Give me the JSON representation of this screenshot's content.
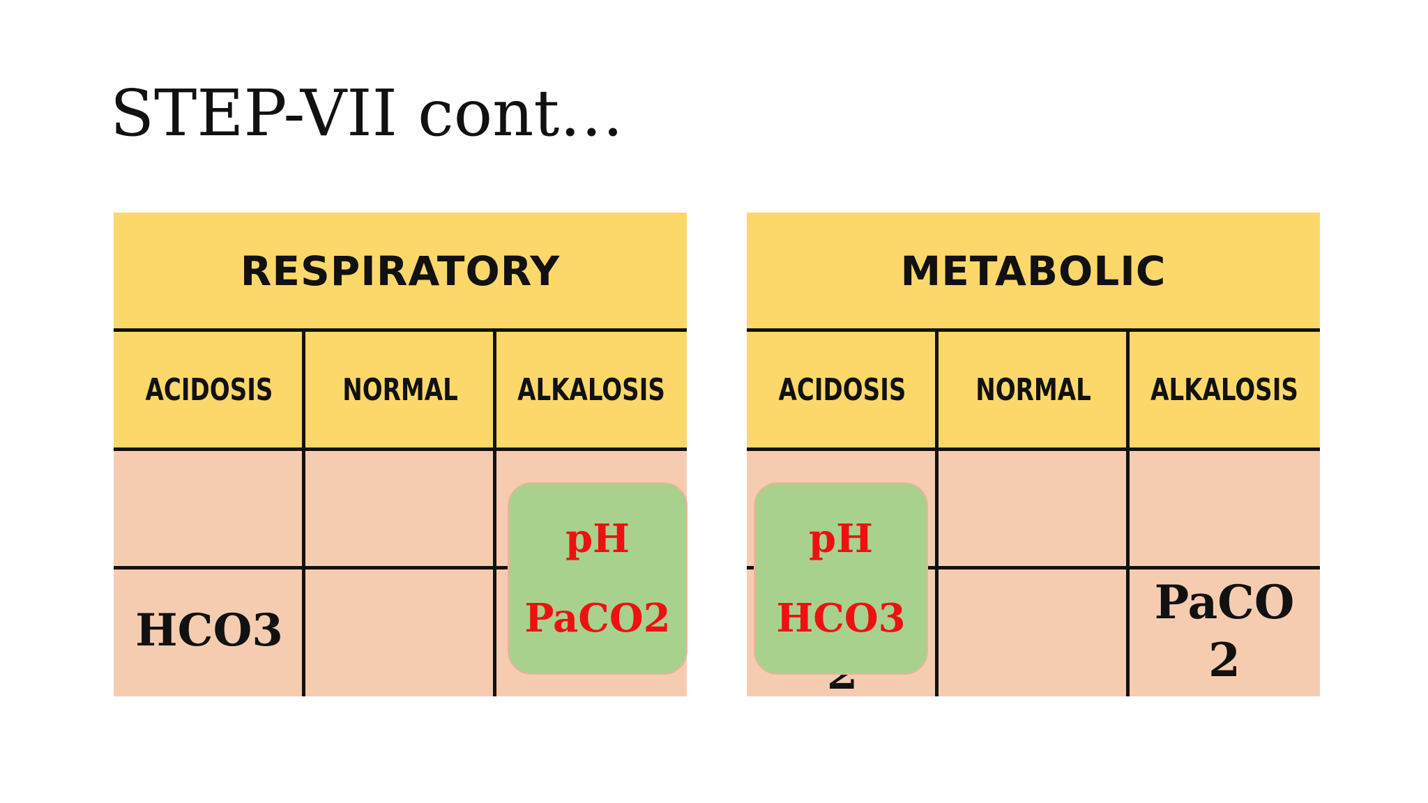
{
  "slide": {
    "title": "STEP-VII cont…"
  },
  "respiratory": {
    "header": "RESPIRATORY",
    "columns": [
      "ACIDOSIS",
      "NORMAL",
      "ALKALOSIS"
    ],
    "row2_acidosis": "HCO3",
    "overlay_top": "pH",
    "overlay_bottom": "PaCO2"
  },
  "metabolic": {
    "header": "METABOLIC",
    "columns": [
      "ACIDOSIS",
      "NORMAL",
      "ALKALOSIS"
    ],
    "row2_alkalosis_line1": "PaCO",
    "row2_alkalosis_line2": "2",
    "row2_acidosis_peek": "2",
    "overlay_top": "pH",
    "overlay_bottom": "HCO3"
  },
  "colors": {
    "header_fill": "#fcd86a",
    "body_fill": "#f6ccb0",
    "overlay_fill": "#a9d18e",
    "overlay_text": "#ee1111"
  }
}
